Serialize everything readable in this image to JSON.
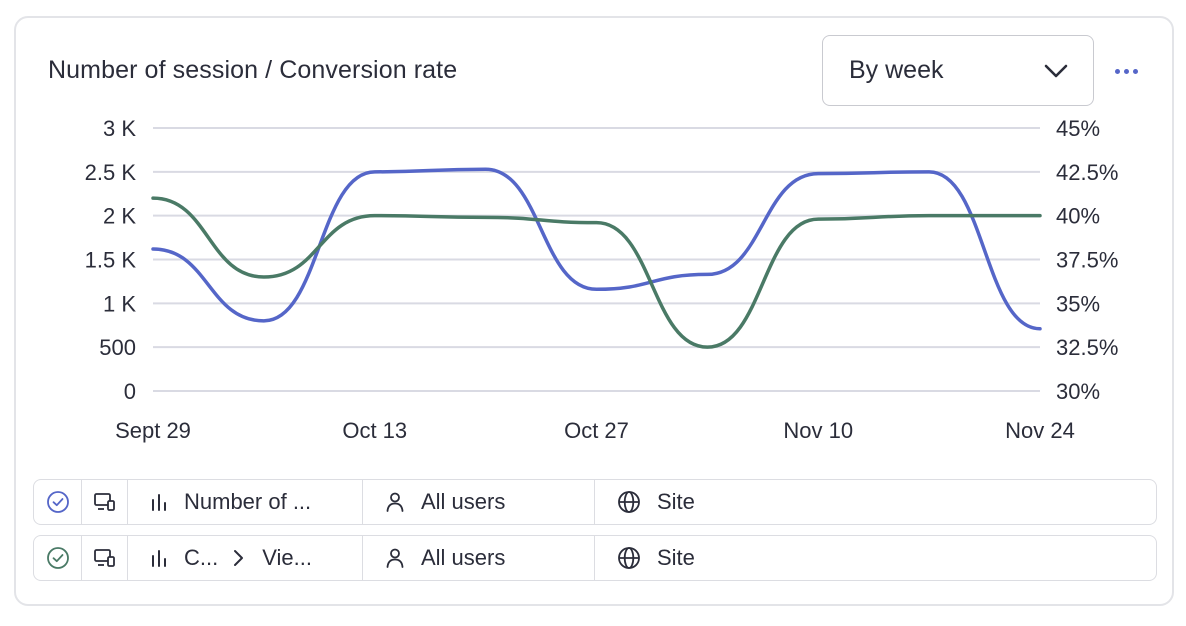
{
  "title": "Number of session / Conversion rate",
  "period_select": {
    "value": "By week"
  },
  "more_icon": "more-horizontal-icon",
  "colors": {
    "sessions": "#5566c8",
    "conversion": "#4a7a66",
    "grid": "#d9dae3",
    "text": "#2b2d3a"
  },
  "chart_data": {
    "type": "line",
    "x_tick_labels": [
      "Sept 29",
      "Oct 13",
      "Oct 27",
      "Nov 10",
      "Nov 24"
    ],
    "x": [
      0,
      1,
      2,
      3,
      4,
      5,
      6,
      7,
      8
    ],
    "y_left": {
      "ticks": [
        "3 K",
        "2.5 K",
        "2 K",
        "1.5 K",
        "1 K",
        "500",
        "0"
      ],
      "lim": [
        0,
        3000
      ]
    },
    "y_right": {
      "ticks": [
        "45%",
        "42.5%",
        "40%",
        "37.5%",
        "35%",
        "32.5%",
        "30%"
      ],
      "lim": [
        30,
        45
      ]
    },
    "grid": true,
    "series": [
      {
        "axis": "left",
        "color": "#5566c8",
        "values": [
          1620,
          800,
          2500,
          2530,
          1160,
          1330,
          2480,
          2500,
          710
        ]
      },
      {
        "axis": "right",
        "color": "#4a7a66",
        "values": [
          41,
          36.5,
          40,
          39.9,
          39.6,
          32.5,
          39.8,
          40,
          40
        ]
      }
    ]
  },
  "series_rows": [
    {
      "check_icon": "check-circle-icon",
      "check_color": "#5566c8",
      "device_icon": "device-icon",
      "metric_icon": "bar-chart-icon",
      "metric_label": "Number of ...",
      "metric_label_2": "",
      "users_icon": "user-icon",
      "users_label": "All users",
      "site_icon": "globe-icon",
      "site_label": "Site"
    },
    {
      "check_icon": "check-circle-icon",
      "check_color": "#4a7a66",
      "device_icon": "device-icon",
      "metric_icon": "bar-chart-icon",
      "metric_label": "C...",
      "metric_label_2": "Vie...",
      "users_icon": "user-icon",
      "users_label": "All users",
      "site_icon": "globe-icon",
      "site_label": "Site"
    }
  ]
}
